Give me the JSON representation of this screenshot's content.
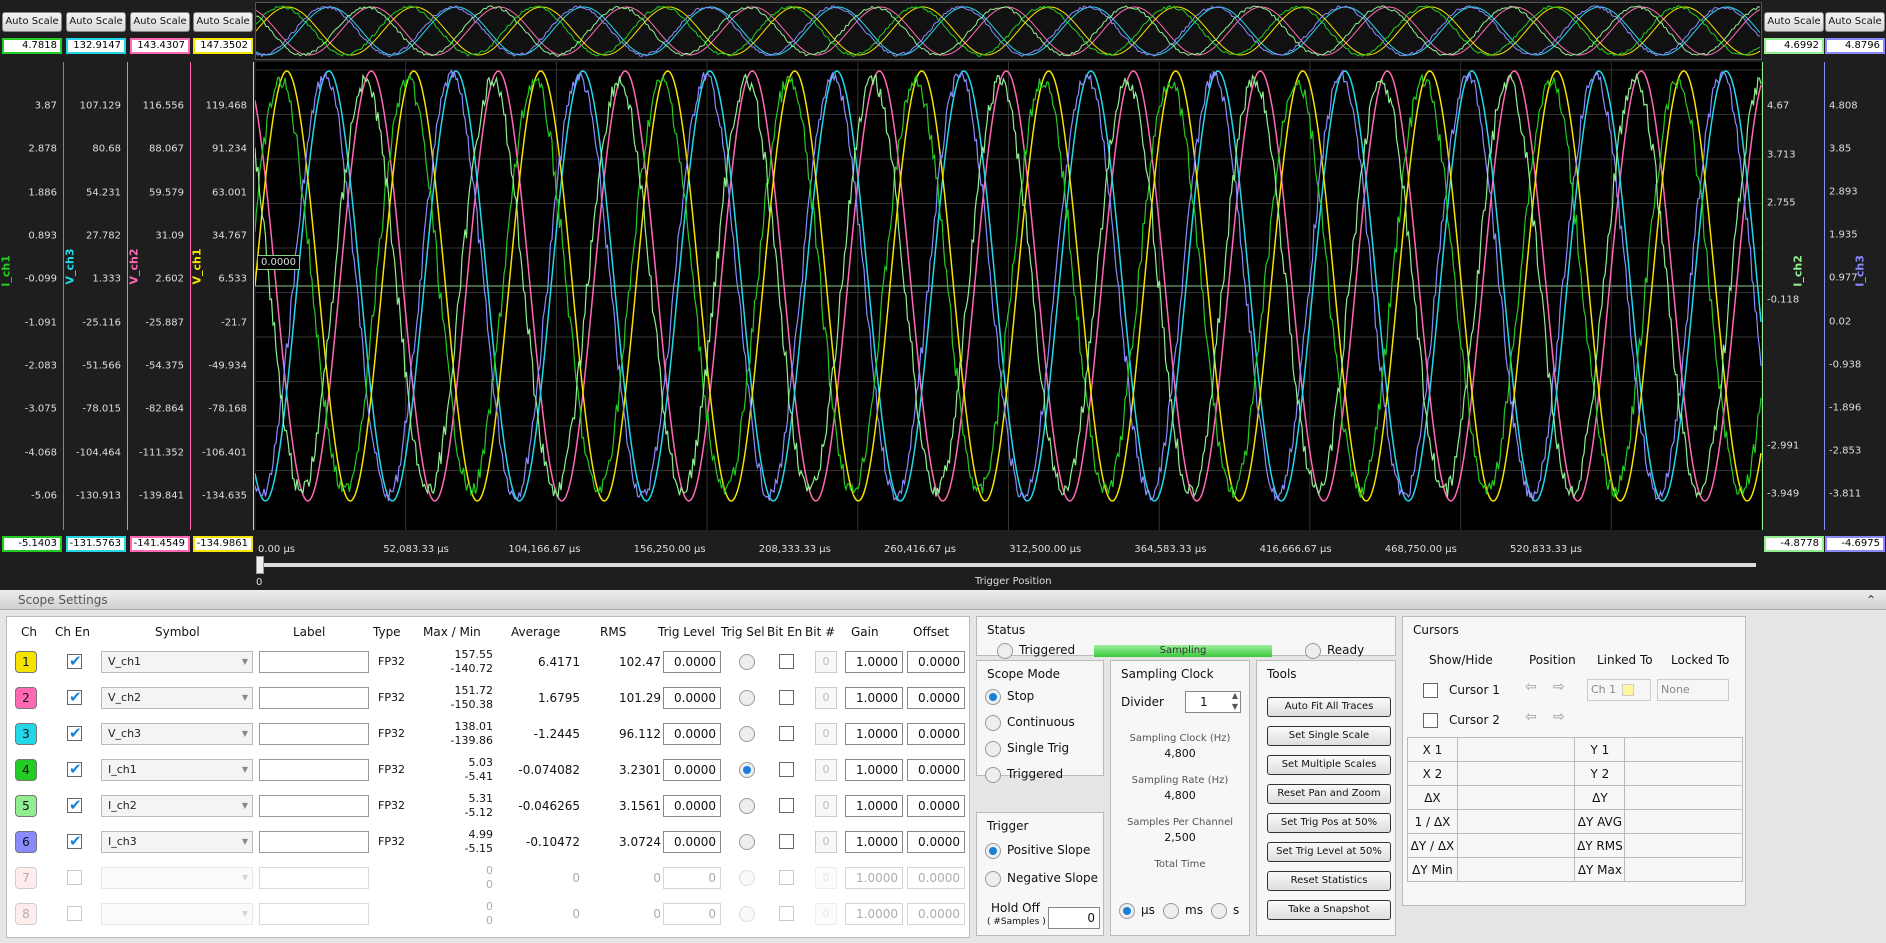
{
  "top": {
    "autoscale_label": "Auto Scale",
    "left_values": [
      "4.7818",
      "132.9147",
      "143.4307",
      "147.3502"
    ],
    "left_bottom_values": [
      "-5.1403",
      "-131.5763",
      "-141.4549",
      "-134.9861"
    ],
    "right_values": [
      "4.6992",
      "4.8796"
    ],
    "right_bottom_values": [
      "-4.8778",
      "-4.6975"
    ],
    "axes_left": [
      {
        "title": "I_ch1",
        "color": "#22cc22",
        "ticks": [
          "3.87",
          "2.878",
          "1.886",
          "0.893",
          "-0.099",
          "-1.091",
          "-2.083",
          "-3.075",
          "-4.068",
          "-5.06"
        ]
      },
      {
        "title": "V_ch3",
        "color": "#22d8e8",
        "ticks": [
          "107.129",
          "80.68",
          "54.231",
          "27.782",
          "1.333",
          "-25.116",
          "-51.566",
          "-78.015",
          "-104.464",
          "-130.913"
        ]
      },
      {
        "title": "V_ch2",
        "color": "#ff69b4",
        "ticks": [
          "116.556",
          "88.067",
          "59.579",
          "31.09",
          "2.602",
          "-25.887",
          "-54.375",
          "-82.864",
          "-111.352",
          "-139.841"
        ]
      },
      {
        "title": "V_ch1",
        "color": "#f5e400",
        "ticks": [
          "119.468",
          "91.234",
          "63.001",
          "34.767",
          "6.533",
          "-21.7",
          "-49.934",
          "-78.168",
          "-106.401",
          "-134.635"
        ]
      }
    ],
    "axes_right": [
      {
        "title": "I_ch2",
        "color": "#90ee90",
        "ticks": [
          "4.67",
          "3.713",
          "2.755",
          "",
          "-0.118",
          "",
          "",
          "-2.991",
          "-3.949"
        ]
      },
      {
        "title": "I_ch3",
        "color": "#8a8aff",
        "ticks": [
          "4.808",
          "3.85",
          "2.893",
          "1.935",
          "0.977",
          "0.02",
          "-0.938",
          "-1.896",
          "-2.853",
          "-3.811"
        ]
      }
    ],
    "trigger_marker": "0.0000",
    "x_ticks": [
      "0.00  µs",
      "52,083.33  µs",
      "104,166.67  µs",
      "156,250.00  µs",
      "208,333.33  µs",
      "260,416.67  µs",
      "312,500.00  µs",
      "364,583.33  µs",
      "416,666.67  µs",
      "468,750.00  µs",
      "520,833.33  µs"
    ],
    "slider_zero": "0",
    "trigger_position_label": "Trigger Position"
  },
  "settings": {
    "title": "Scope Settings",
    "headers": {
      "ch": "Ch",
      "chen": "Ch En",
      "symbol": "Symbol",
      "label": "Label",
      "type": "Type",
      "maxmin": "Max / Min",
      "average": "Average",
      "rms": "RMS",
      "triglevel": "Trig Level",
      "trigsel": "Trig Sel",
      "biten": "Bit En",
      "bitnum": "Bit #",
      "gain": "Gain",
      "offset": "Offset"
    },
    "channels": [
      {
        "num": "1",
        "color": "#f5e400",
        "enabled": true,
        "symbol": "V_ch1",
        "type": "FP32",
        "max": "157.55",
        "min": "-140.72",
        "avg": "6.4171",
        "rms": "102.47",
        "trig": "0.0000",
        "trigsel": false,
        "bit": "0",
        "gain": "1.0000",
        "offset": "0.0000"
      },
      {
        "num": "2",
        "color": "#ff69b4",
        "enabled": true,
        "symbol": "V_ch2",
        "type": "FP32",
        "max": "151.72",
        "min": "-150.38",
        "avg": "1.6795",
        "rms": "101.29",
        "trig": "0.0000",
        "trigsel": false,
        "bit": "0",
        "gain": "1.0000",
        "offset": "0.0000"
      },
      {
        "num": "3",
        "color": "#22d8e8",
        "enabled": true,
        "symbol": "V_ch3",
        "type": "FP32",
        "max": "138.01",
        "min": "-139.86",
        "avg": "-1.2445",
        "rms": "96.112",
        "trig": "0.0000",
        "trigsel": false,
        "bit": "0",
        "gain": "1.0000",
        "offset": "0.0000"
      },
      {
        "num": "4",
        "color": "#22cc22",
        "enabled": true,
        "symbol": "I_ch1",
        "type": "FP32",
        "max": "5.03",
        "min": "-5.41",
        "avg": "-0.074082",
        "rms": "3.2301",
        "trig": "0.0000",
        "trigsel": true,
        "bit": "0",
        "gain": "1.0000",
        "offset": "0.0000"
      },
      {
        "num": "5",
        "color": "#90ee90",
        "enabled": true,
        "symbol": "I_ch2",
        "type": "FP32",
        "max": "5.31",
        "min": "-5.12",
        "avg": "-0.046265",
        "rms": "3.1561",
        "trig": "0.0000",
        "trigsel": false,
        "bit": "0",
        "gain": "1.0000",
        "offset": "0.0000"
      },
      {
        "num": "6",
        "color": "#8a8aff",
        "enabled": true,
        "symbol": "I_ch3",
        "type": "FP32",
        "max": "4.99",
        "min": "-5.15",
        "avg": "-0.10472",
        "rms": "3.0724",
        "trig": "0.0000",
        "trigsel": false,
        "bit": "0",
        "gain": "1.0000",
        "offset": "0.0000"
      },
      {
        "num": "7",
        "color": "#ffcccc",
        "enabled": false,
        "symbol": "",
        "type": "",
        "max": "0",
        "min": "0",
        "avg": "0",
        "rms": "0",
        "trig": "0",
        "trigsel": false,
        "bit": "0",
        "gain": "1.0000",
        "offset": "0.0000"
      },
      {
        "num": "8",
        "color": "#ffcccc",
        "enabled": false,
        "symbol": "",
        "type": "",
        "max": "0",
        "min": "0",
        "avg": "0",
        "rms": "0",
        "trig": "0",
        "trigsel": false,
        "bit": "0",
        "gain": "1.0000",
        "offset": "0.0000"
      }
    ],
    "status": {
      "title": "Status",
      "triggered": "Triggered",
      "sampling": "Sampling",
      "ready": "Ready"
    },
    "scope_mode": {
      "title": "Scope Mode",
      "options": [
        "Stop",
        "Continuous",
        "Single Trig",
        "Triggered"
      ],
      "selected": "Stop"
    },
    "trigger": {
      "title": "Trigger",
      "options": [
        "Positive Slope",
        "Negative Slope"
      ],
      "selected": "Positive Slope",
      "holdoff_label": "Hold Off",
      "holdoff_sub": "( #Samples )",
      "holdoff_value": "0"
    },
    "sampling_clock": {
      "title": "Sampling Clock",
      "divider_label": "Divider",
      "divider_value": "1",
      "clock_label": "Sampling Clock (Hz)",
      "clock_value": "4,800",
      "rate_label": "Sampling Rate (Hz)",
      "rate_value": "4,800",
      "spc_label": "Samples Per Channel",
      "spc_value": "2,500",
      "total_label": "Total Time",
      "units": [
        "µs",
        "ms",
        "s"
      ],
      "unit_selected": "µs"
    },
    "tools": {
      "title": "Tools",
      "buttons": [
        "Auto Fit All Traces",
        "Set Single Scale",
        "Set Multiple Scales",
        "Reset Pan and Zoom",
        "Set Trig Pos at 50%",
        "Set Trig Level at 50%",
        "Reset Statistics",
        "Take a Snapshot"
      ]
    },
    "cursors": {
      "title": "Cursors",
      "headers": [
        "Show/Hide",
        "Position",
        "Linked To",
        "Locked To"
      ],
      "rows": [
        {
          "name": "Cursor 1",
          "linked": "Ch 1",
          "locked": "None"
        },
        {
          "name": "Cursor 2"
        }
      ],
      "measure_left": [
        "X 1",
        "X 2",
        "ΔX",
        "1 / ΔX",
        "ΔY / ΔX",
        "ΔY Min"
      ],
      "measure_right": [
        "Y 1",
        "Y 2",
        "ΔY",
        "ΔY AVG",
        "ΔY RMS",
        "ΔY Max"
      ]
    }
  }
}
